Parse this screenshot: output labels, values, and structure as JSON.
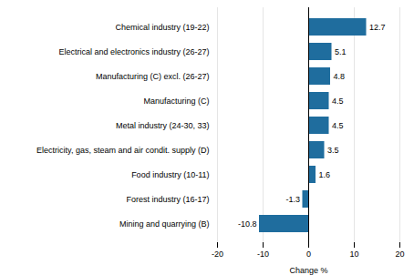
{
  "chart_data": {
    "type": "bar",
    "orientation": "horizontal",
    "categories": [
      "Chemical industry (19-22)",
      "Electrical and electronics industry (26-27)",
      "Manufacturing (C) excl. (26-27)",
      "Manufacturing (C)",
      "Metal industry (24-30, 33)",
      "Electricity, gas, steam and air condit. supply (D)",
      "Food industry (10-11)",
      "Forest industry (16-17)",
      "Mining and quarrying (B)"
    ],
    "values": [
      12.7,
      5.1,
      4.8,
      4.5,
      4.5,
      3.5,
      1.6,
      -1.3,
      -10.8
    ],
    "color": "#1f6d9e",
    "xlabel": "Change %",
    "xlim": [
      -20,
      20
    ],
    "xticks": [
      -20,
      -10,
      0,
      10,
      20
    ],
    "grid": true,
    "data_labels": true
  }
}
